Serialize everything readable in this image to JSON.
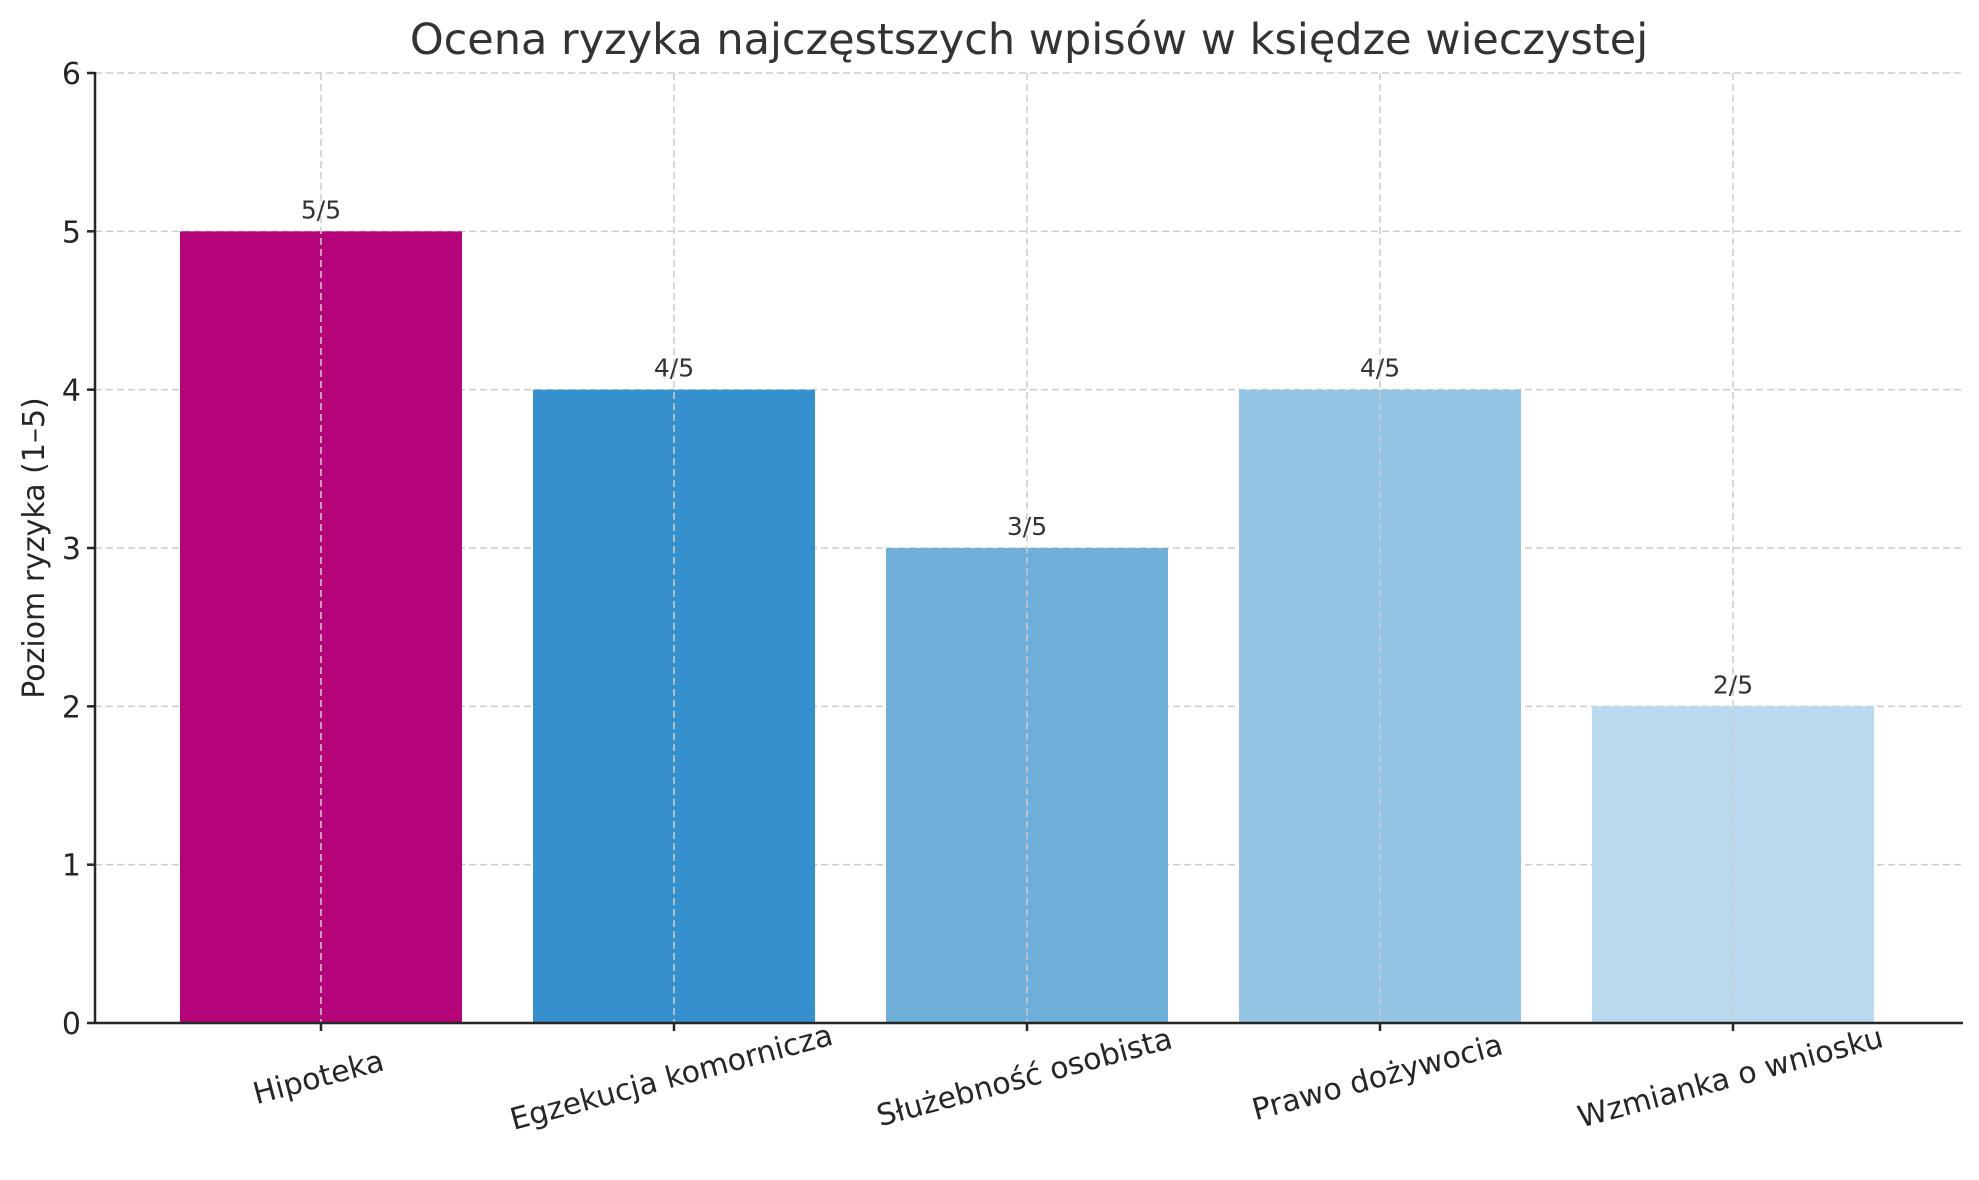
{
  "chart_data": {
    "type": "bar",
    "title": "Ocena ryzyka najczęstszych wpisów w księdze wieczystej",
    "xlabel": "",
    "ylabel": "Poziom ryzyka (1–5)",
    "categories": [
      "Hipoteka",
      "Egzekucja komornicza",
      "Służebność osobista",
      "Prawo dożywocia",
      "Wzmianka o wniosku"
    ],
    "values": [
      5,
      4,
      3,
      4,
      2
    ],
    "value_labels": [
      "5/5",
      "4/5",
      "3/5",
      "4/5",
      "2/5"
    ],
    "colors": [
      "#b5037a",
      "#3590cd",
      "#6fafd9",
      "#94c4e3",
      "#b9d9ee"
    ],
    "ylim": [
      0,
      6
    ],
    "yticks": [
      0,
      1,
      2,
      3,
      4,
      5,
      6
    ],
    "grid": true,
    "xtick_rotation": 15,
    "legend": null
  }
}
